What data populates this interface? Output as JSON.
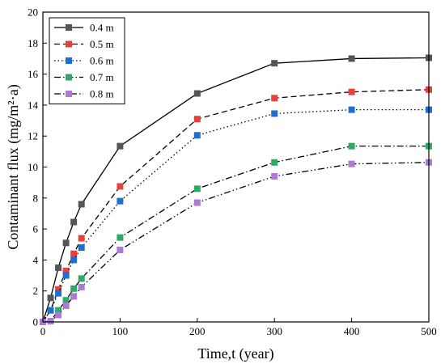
{
  "chart_data": {
    "type": "line",
    "xlabel": "Time,t (year)",
    "ylabel": "Contaminant flux (mg/m²·a)",
    "xlim": [
      0,
      500
    ],
    "ylim": [
      0,
      20
    ],
    "xticks": [
      0,
      100,
      200,
      300,
      400,
      500
    ],
    "yticks": [
      0,
      2,
      4,
      6,
      8,
      10,
      12,
      14,
      16,
      18,
      20
    ],
    "grid": false,
    "legend_position": "top-left",
    "x": [
      0,
      10,
      20,
      30,
      40,
      50,
      100,
      200,
      300,
      400,
      500
    ],
    "series": [
      {
        "name": "0.4 m",
        "color": "#555555",
        "dash": "solid",
        "values": [
          0,
          1.55,
          3.5,
          5.1,
          6.45,
          7.6,
          11.35,
          14.75,
          16.7,
          17.0,
          17.05
        ]
      },
      {
        "name": "0.5 m",
        "color": "#e8403c",
        "dash": "dashed",
        "values": [
          0,
          0.75,
          2.1,
          3.3,
          4.4,
          5.4,
          8.75,
          13.1,
          14.45,
          14.85,
          15.0
        ]
      },
      {
        "name": "0.6 m",
        "color": "#1f6fd1",
        "dash": "dotted",
        "values": [
          0,
          0.75,
          1.85,
          3.0,
          4.0,
          4.8,
          7.8,
          12.05,
          13.45,
          13.7,
          13.7
        ]
      },
      {
        "name": "0.7 m",
        "color": "#2eaa63",
        "dash": "dash-dot",
        "values": [
          0,
          0.05,
          0.75,
          1.4,
          2.15,
          2.8,
          5.45,
          8.6,
          10.3,
          11.35,
          11.35
        ]
      },
      {
        "name": "0.8 m",
        "color": "#a97ad6",
        "dash": "dash-dot-dot",
        "values": [
          0,
          0.05,
          0.45,
          1.05,
          1.65,
          2.25,
          4.65,
          7.7,
          9.4,
          10.2,
          10.3
        ]
      }
    ]
  }
}
